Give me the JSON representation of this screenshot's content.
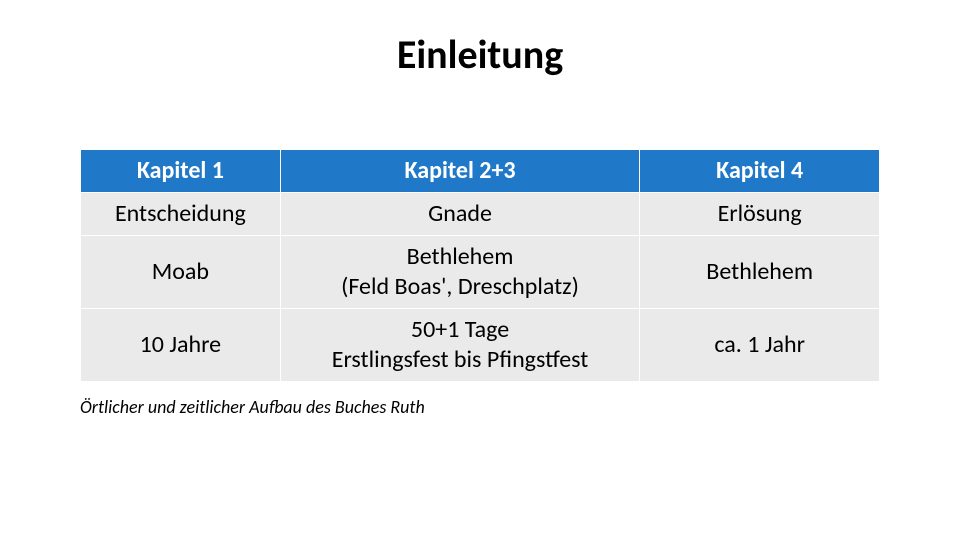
{
  "title": "Einleitung",
  "table": {
    "type": "table",
    "header_bg": "#1f78c8",
    "header_fg": "#ffffff",
    "body_bg": "#eaeaea",
    "body_fg": "#000000",
    "border_color": "#ffffff",
    "font_size_header": 24,
    "font_size_body": 24,
    "column_widths_pct": [
      25,
      45,
      30
    ],
    "columns": [
      "Kapitel 1",
      "Kapitel 2+3",
      "Kapitel 4"
    ],
    "rows": [
      [
        "Entscheidung",
        "Gnade",
        "Erlösung"
      ],
      [
        "Moab",
        "Bethlehem\n(Feld Boas', Dreschplatz)",
        "Bethlehem"
      ],
      [
        "10 Jahre",
        "50+1 Tage\nErstlingsfest bis Pfingstfest",
        "ca. 1 Jahr"
      ]
    ]
  },
  "caption": "Örtlicher und zeitlicher Aufbau des Buches Ruth"
}
